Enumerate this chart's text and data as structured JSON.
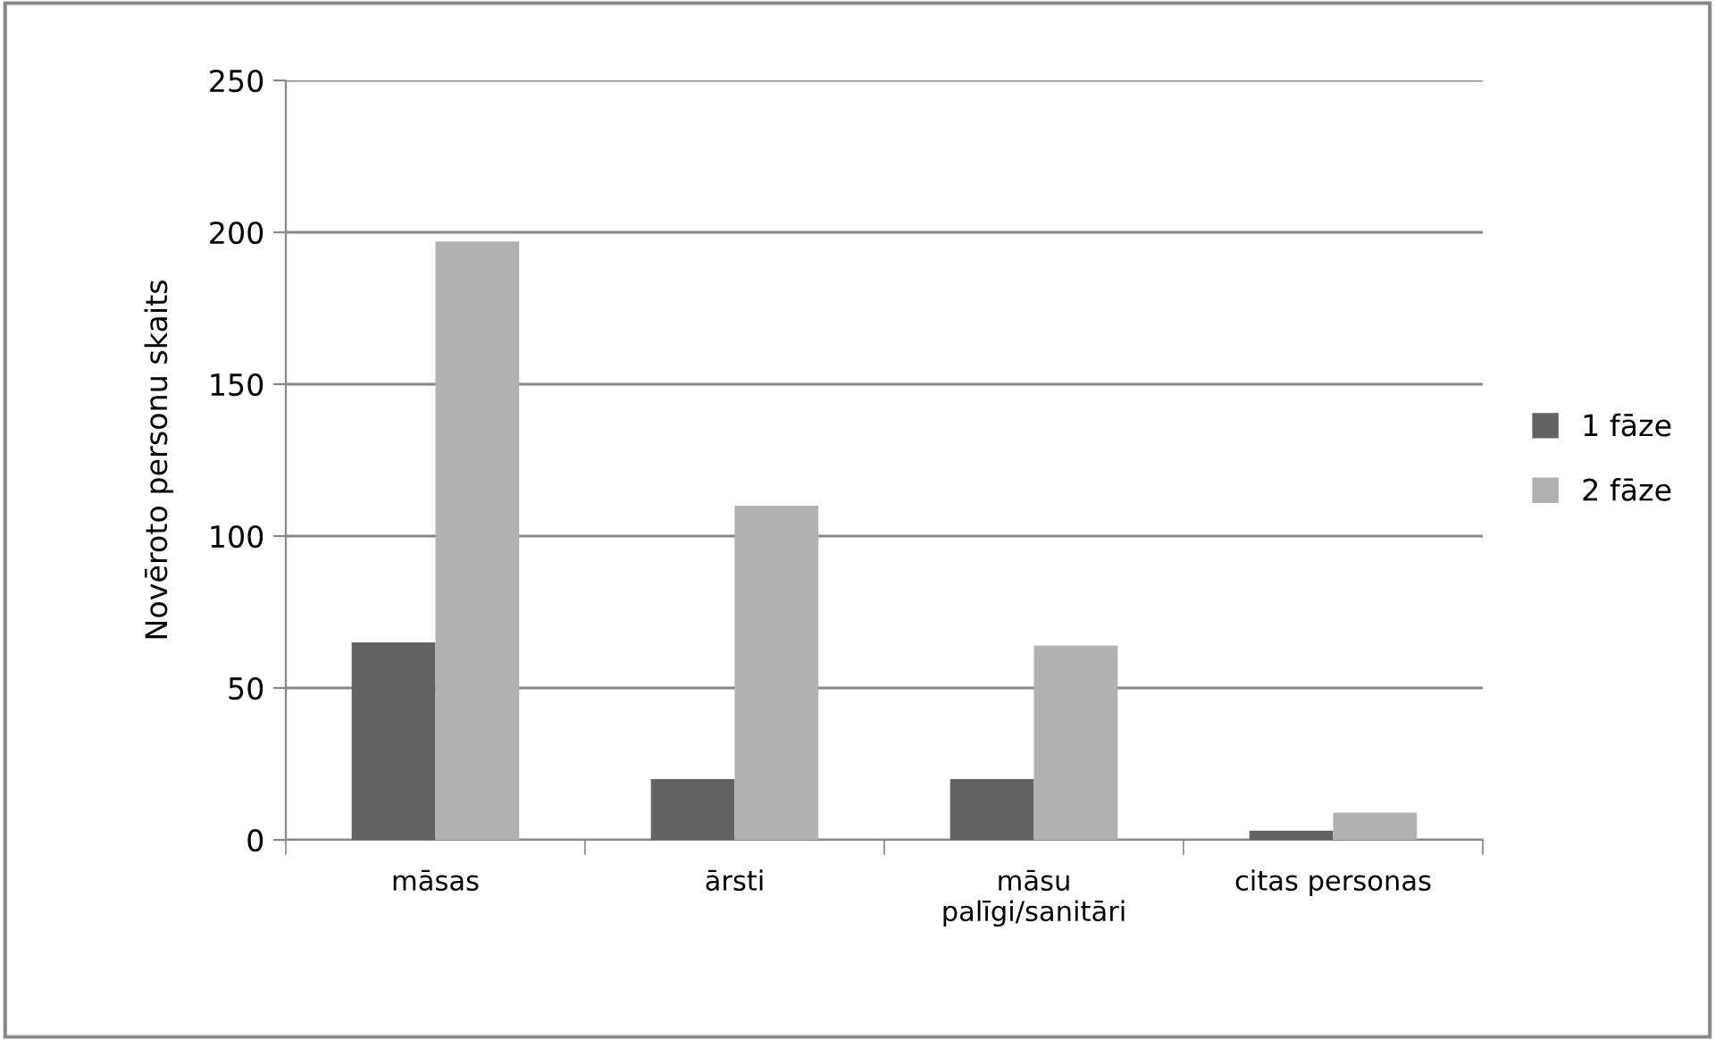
{
  "chart_data": {
    "type": "bar",
    "ylabel": "Novēroto personu skaits",
    "categories": [
      "māsas",
      "ārsti",
      "māsu\npalīgi/sanitāri",
      "citas personas"
    ],
    "series": [
      {
        "name": "1 fāze",
        "color": "#626262",
        "values": [
          65,
          20,
          20,
          3
        ]
      },
      {
        "name": "2 fāze",
        "color": "#b1b1b1",
        "values": [
          197,
          110,
          64,
          9
        ]
      }
    ],
    "ylim": [
      0,
      250
    ],
    "yticks": [
      0,
      50,
      100,
      150,
      200,
      250
    ],
    "grid": "y",
    "legend": "right"
  }
}
